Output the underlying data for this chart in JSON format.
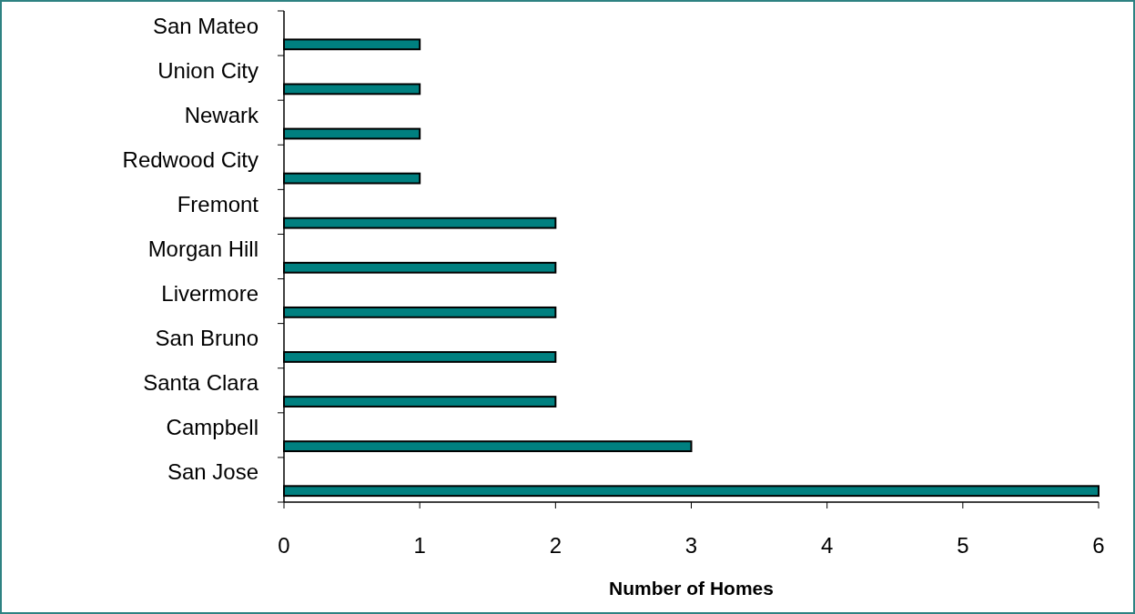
{
  "chart_data": {
    "type": "bar",
    "orientation": "horizontal",
    "xlabel": "Number of Homes",
    "categories": [
      "San Mateo",
      "Union City",
      "Newark",
      "Redwood City",
      "Fremont",
      "Morgan Hill",
      "Livermore",
      "San Bruno",
      "Santa Clara",
      "Campbell",
      "San Jose"
    ],
    "values": [
      1,
      1,
      1,
      1,
      2,
      2,
      2,
      2,
      2,
      3,
      6
    ],
    "color": "#008080",
    "xlim": [
      0,
      6
    ],
    "xticks": [
      0,
      1,
      2,
      3,
      4,
      5,
      6
    ],
    "grid": false
  }
}
